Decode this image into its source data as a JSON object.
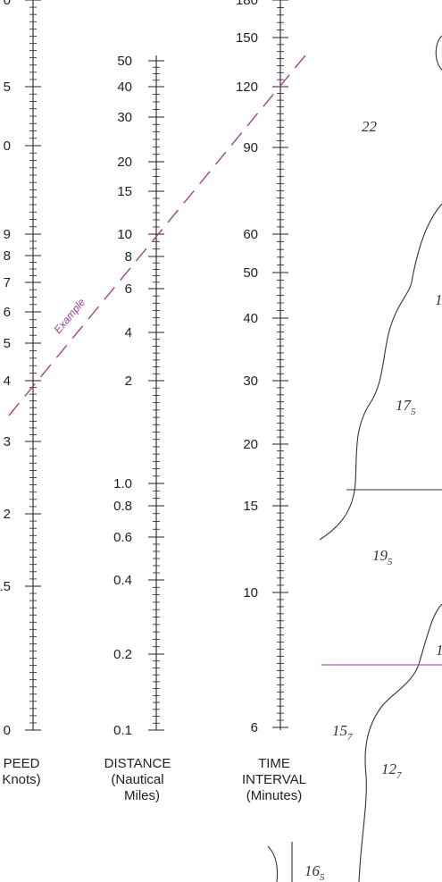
{
  "scales": {
    "speed": {
      "labels": [
        "0",
        "5",
        "0",
        "9",
        "8",
        "7",
        "6",
        "5",
        "4",
        "3",
        "2",
        ".5",
        "0"
      ],
      "caption": [
        "PEED",
        "Knots)"
      ]
    },
    "distance": {
      "labels": [
        "50",
        "40",
        "30",
        "20",
        "15",
        "10",
        "8",
        "6",
        "4",
        "2",
        "1.0",
        "0.8",
        "0.6",
        "0.4",
        "0.2",
        "0.1"
      ],
      "caption": [
        "DISTANCE",
        "(Nautical",
        "Miles)"
      ]
    },
    "time": {
      "labels": [
        "180",
        "150",
        "120",
        "90",
        "60",
        "50",
        "40",
        "30",
        "20",
        "15",
        "10",
        "6"
      ],
      "caption": [
        "TIME",
        "INTERVAL",
        "(Minutes)"
      ]
    }
  },
  "example_label": "Example",
  "soundings": [
    {
      "main": "22",
      "sub": ""
    },
    {
      "main": "1",
      "sub": ""
    },
    {
      "main": "17",
      "sub": "5"
    },
    {
      "main": "19",
      "sub": "5"
    },
    {
      "main": "1",
      "sub": ""
    },
    {
      "main": "15",
      "sub": "7"
    },
    {
      "main": "12",
      "sub": "7"
    },
    {
      "main": "16",
      "sub": "5"
    }
  ],
  "colors": {
    "ink": "#222222",
    "example": "#a0409a",
    "chart_line": "#333333",
    "magenta_line": "#b05aa8"
  }
}
